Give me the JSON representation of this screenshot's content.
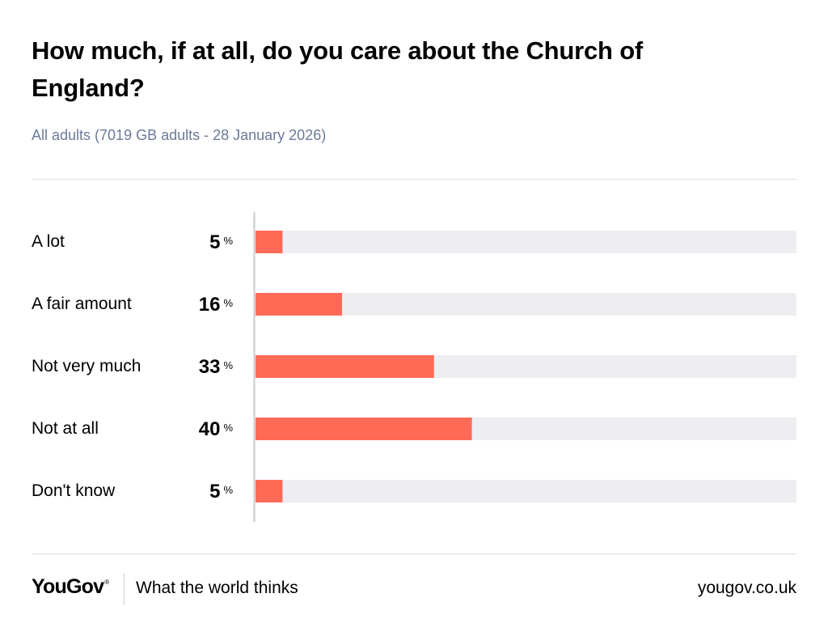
{
  "header": {
    "title": "How much, if at all, do you care about the Church of England?",
    "subtitle": "All adults (7019 GB adults - 28 January 2026)"
  },
  "chart_data": {
    "type": "bar",
    "orientation": "horizontal",
    "categories": [
      "A lot",
      "A fair amount",
      "Not very much",
      "Not at all",
      "Don't know"
    ],
    "values": [
      5,
      16,
      33,
      40,
      5
    ],
    "unit": "%",
    "xlim": [
      0,
      100
    ],
    "title": "How much, if at all, do you care about the Church of England?",
    "xlabel": "",
    "ylabel": ""
  },
  "colors": {
    "bar": "#ff6b57",
    "track": "#eeeef2",
    "axis": "#c9cad1",
    "subtitle": "#6b7a99"
  },
  "footer": {
    "logo": "YouGov",
    "logo_mark": "®",
    "tagline": "What the world thinks",
    "url": "yougov.co.uk"
  }
}
